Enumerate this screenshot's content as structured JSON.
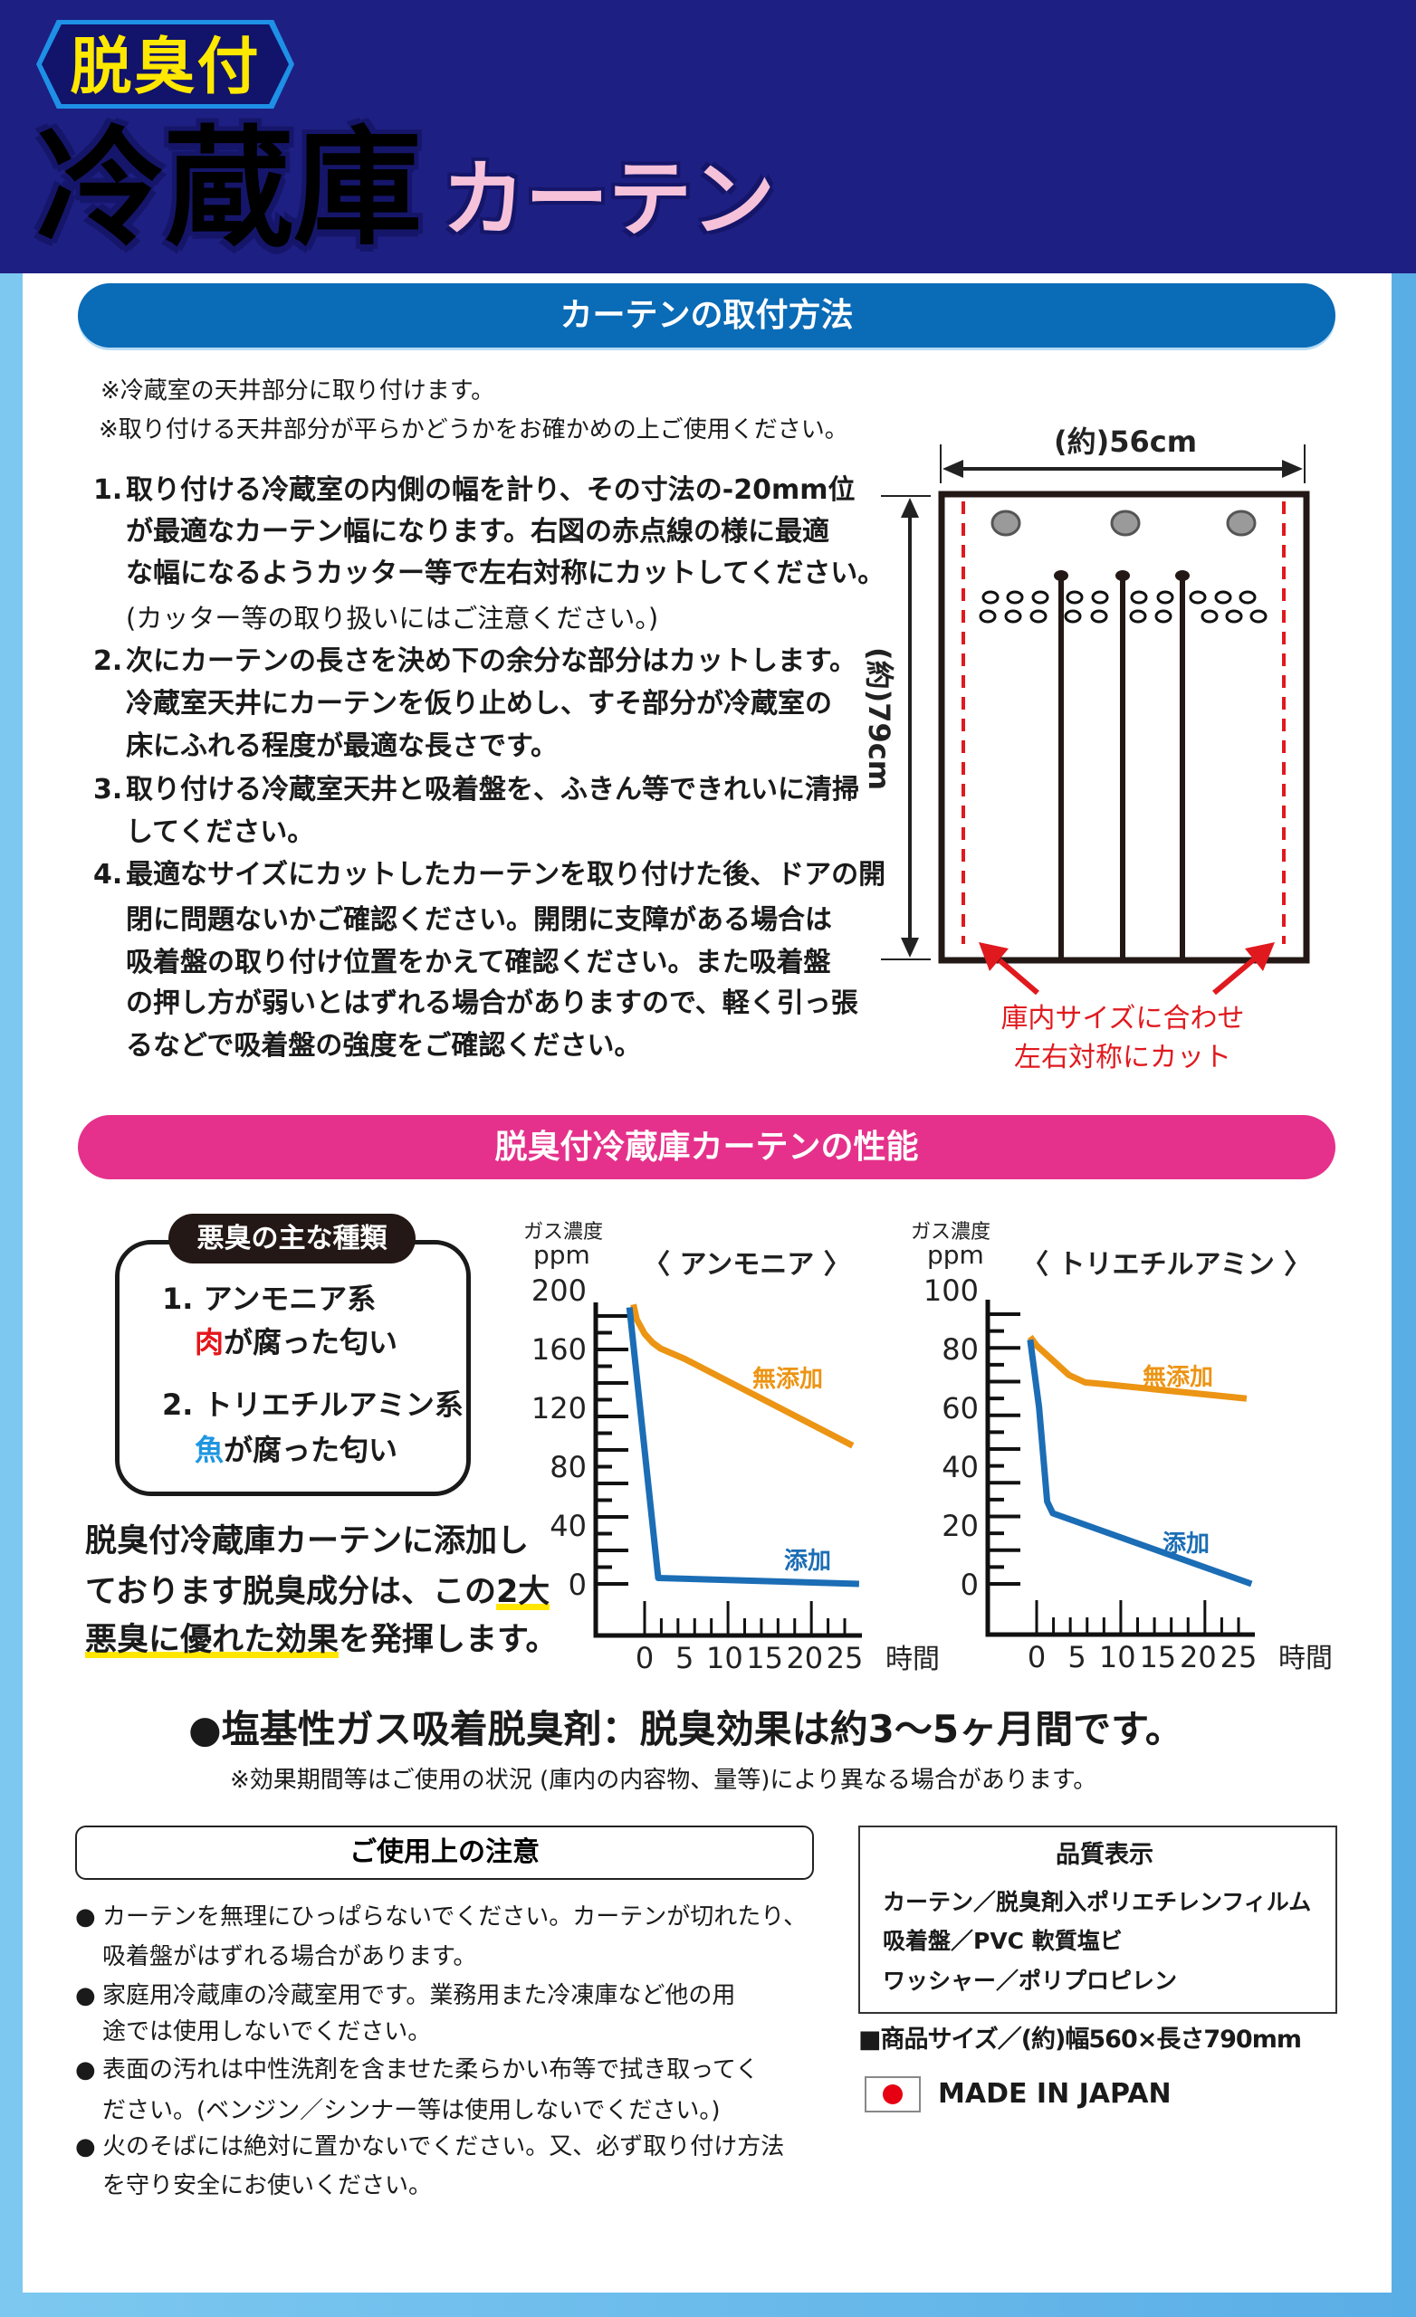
{
  "header": {
    "badge": "脱臭付",
    "title_main": "冷蔵庫",
    "title_sub": "カーテン"
  },
  "install": {
    "heading": "カーテンの取付方法",
    "notes": [
      "※冷蔵室の天井部分に取り付けます。",
      "※取り付ける天井部分が平らかどうかをお確かめの上ご使用ください。"
    ],
    "steps": [
      {
        "number": "1.",
        "lines": [
          "取り付ける冷蔵室の内側の幅を計り、その寸法の-20mm位",
          "が最適なカーテン幅になります。右図の赤点線の様に最適",
          "な幅になるようカッター等で左右対称にカットしてください。",
          "(カッター等の取り扱いにはご注意ください。)"
        ]
      },
      {
        "number": "2.",
        "lines": [
          "次にカーテンの長さを決め下の余分な部分はカットします。",
          "冷蔵室天井にカーテンを仮り止めし、すそ部分が冷蔵室の",
          "床にふれる程度が最適な長さです。"
        ]
      },
      {
        "number": "3.",
        "lines": [
          "取り付ける冷蔵室天井と吸着盤を、ふきん等できれいに清掃",
          "してください。"
        ]
      },
      {
        "number": "4.",
        "lines": [
          "最適なサイズにカットしたカーテンを取り付けた後、ドアの開",
          "閉に問題ないかご確認ください。開閉に支障がある場合は",
          "吸着盤の取り付け位置をかえて確認ください。また吸着盤",
          "の押し方が弱いとはずれる場合がありますので、軽く引っ張",
          "るなどで吸着盤の強度をご確認ください。"
        ]
      }
    ]
  },
  "diagram": {
    "width_label": "(約)56cm",
    "height_label": "(約)79cm",
    "cut_note": [
      "庫内サイズに合わせ",
      "左右対称にカット"
    ],
    "cut_color": "#e0191e"
  },
  "performance": {
    "heading": "脱臭付冷蔵庫カーテンの性能",
    "odor_box": {
      "title": "悪臭の主な種類",
      "items": [
        {
          "name": "1. アンモニア系",
          "highlight": "肉",
          "desc": "が腐った匂い"
        },
        {
          "name": "2. トリエチルアミン系",
          "highlight": "魚",
          "desc": "が腐った匂い"
        }
      ]
    },
    "summary": {
      "line1": "脱臭付冷蔵庫カーテンに添加し",
      "line2": "ております脱臭成分は、この",
      "line2_underlined": "2大",
      "line3_underlined": "悪臭に優れた効果",
      "line3": "を発揮します。"
    }
  },
  "chart_data": [
    {
      "type": "line",
      "title": "〈 アンモニア 〉",
      "ylabel_top": "ガス濃度",
      "ylabel": "ppm",
      "xlabel": "時間",
      "ylim": [
        0,
        200
      ],
      "xlim": [
        0,
        25
      ],
      "y_ticks": [
        0,
        40,
        80,
        120,
        160,
        200
      ],
      "x_ticks": [
        0,
        5,
        10,
        15,
        20,
        25
      ],
      "series": [
        {
          "name": "無添加",
          "color": "#ec9414",
          "points": [
            [
              -1.4,
              190
            ],
            [
              -1,
              180
            ],
            [
              0,
              170
            ],
            [
              1,
              164
            ],
            [
              2,
              160
            ],
            [
              5,
              153
            ],
            [
              26,
              94
            ]
          ]
        },
        {
          "name": "添加",
          "color": "#1b6db5",
          "points": [
            [
              -1.9,
              188
            ],
            [
              1.7,
              4
            ],
            [
              26.8,
              0
            ]
          ]
        }
      ]
    },
    {
      "type": "line",
      "title": "〈 トリエチルアミン 〉",
      "ylabel_top": "ガス濃度",
      "ylabel": "ppm",
      "xlabel": "時間",
      "ylim": [
        0,
        100
      ],
      "xlim": [
        0,
        25
      ],
      "y_ticks": [
        0,
        20,
        40,
        60,
        80,
        100
      ],
      "x_ticks": [
        0,
        5,
        10,
        15,
        20,
        25
      ],
      "series": [
        {
          "name": "無添加",
          "color": "#ec9414",
          "points": [
            [
              -0.8,
              84
            ],
            [
              0,
              81
            ],
            [
              2,
              76
            ],
            [
              4,
              71
            ],
            [
              6,
              68.5
            ],
            [
              8,
              68
            ],
            [
              26,
              63
            ]
          ]
        },
        {
          "name": "添加",
          "color": "#1b6db5",
          "points": [
            [
              -0.8,
              83
            ],
            [
              0.3,
              60
            ],
            [
              1.3,
              28
            ],
            [
              2,
              24
            ],
            [
              26.6,
              0
            ]
          ]
        }
      ]
    }
  ],
  "effect": {
    "headline": "●塩基性ガス吸着脱臭剤：脱臭効果は約3〜5ヶ月間です。",
    "note": "※効果期間等はご使用の状況 (庫内の内容物、量等)により異なる場合があります。"
  },
  "caution": {
    "title": "ご使用上の注意",
    "bullet": "●",
    "items": [
      {
        "lines": [
          "カーテンを無理にひっぱらないでください。カーテンが切れたり、",
          "吸着盤がはずれる場合があります。"
        ]
      },
      {
        "lines": [
          "家庭用冷蔵庫の冷蔵室用です。業務用また冷凍庫など他の用",
          "途では使用しないでください。"
        ]
      },
      {
        "lines": [
          "表面の汚れは中性洗剤を含ませた柔らかい布等で拭き取ってく",
          "ださい。(ベンジン／シンナー等は使用しないでください。)"
        ]
      },
      {
        "lines": [
          "火のそばには絶対に置かないでください。又、必ず取り付け方法",
          "を守り安全にお使いください。"
        ]
      }
    ]
  },
  "quality": {
    "title": "品質表示",
    "lines": [
      "カーテン／脱臭剤入ポリエチレンフィルム",
      "吸着盤／PVC 軟質塩ビ",
      "ワッシャー／ポリプロピレン"
    ]
  },
  "product_size": "■商品サイズ／(約)幅560×長さ790mm",
  "origin": "MADE IN JAPAN"
}
